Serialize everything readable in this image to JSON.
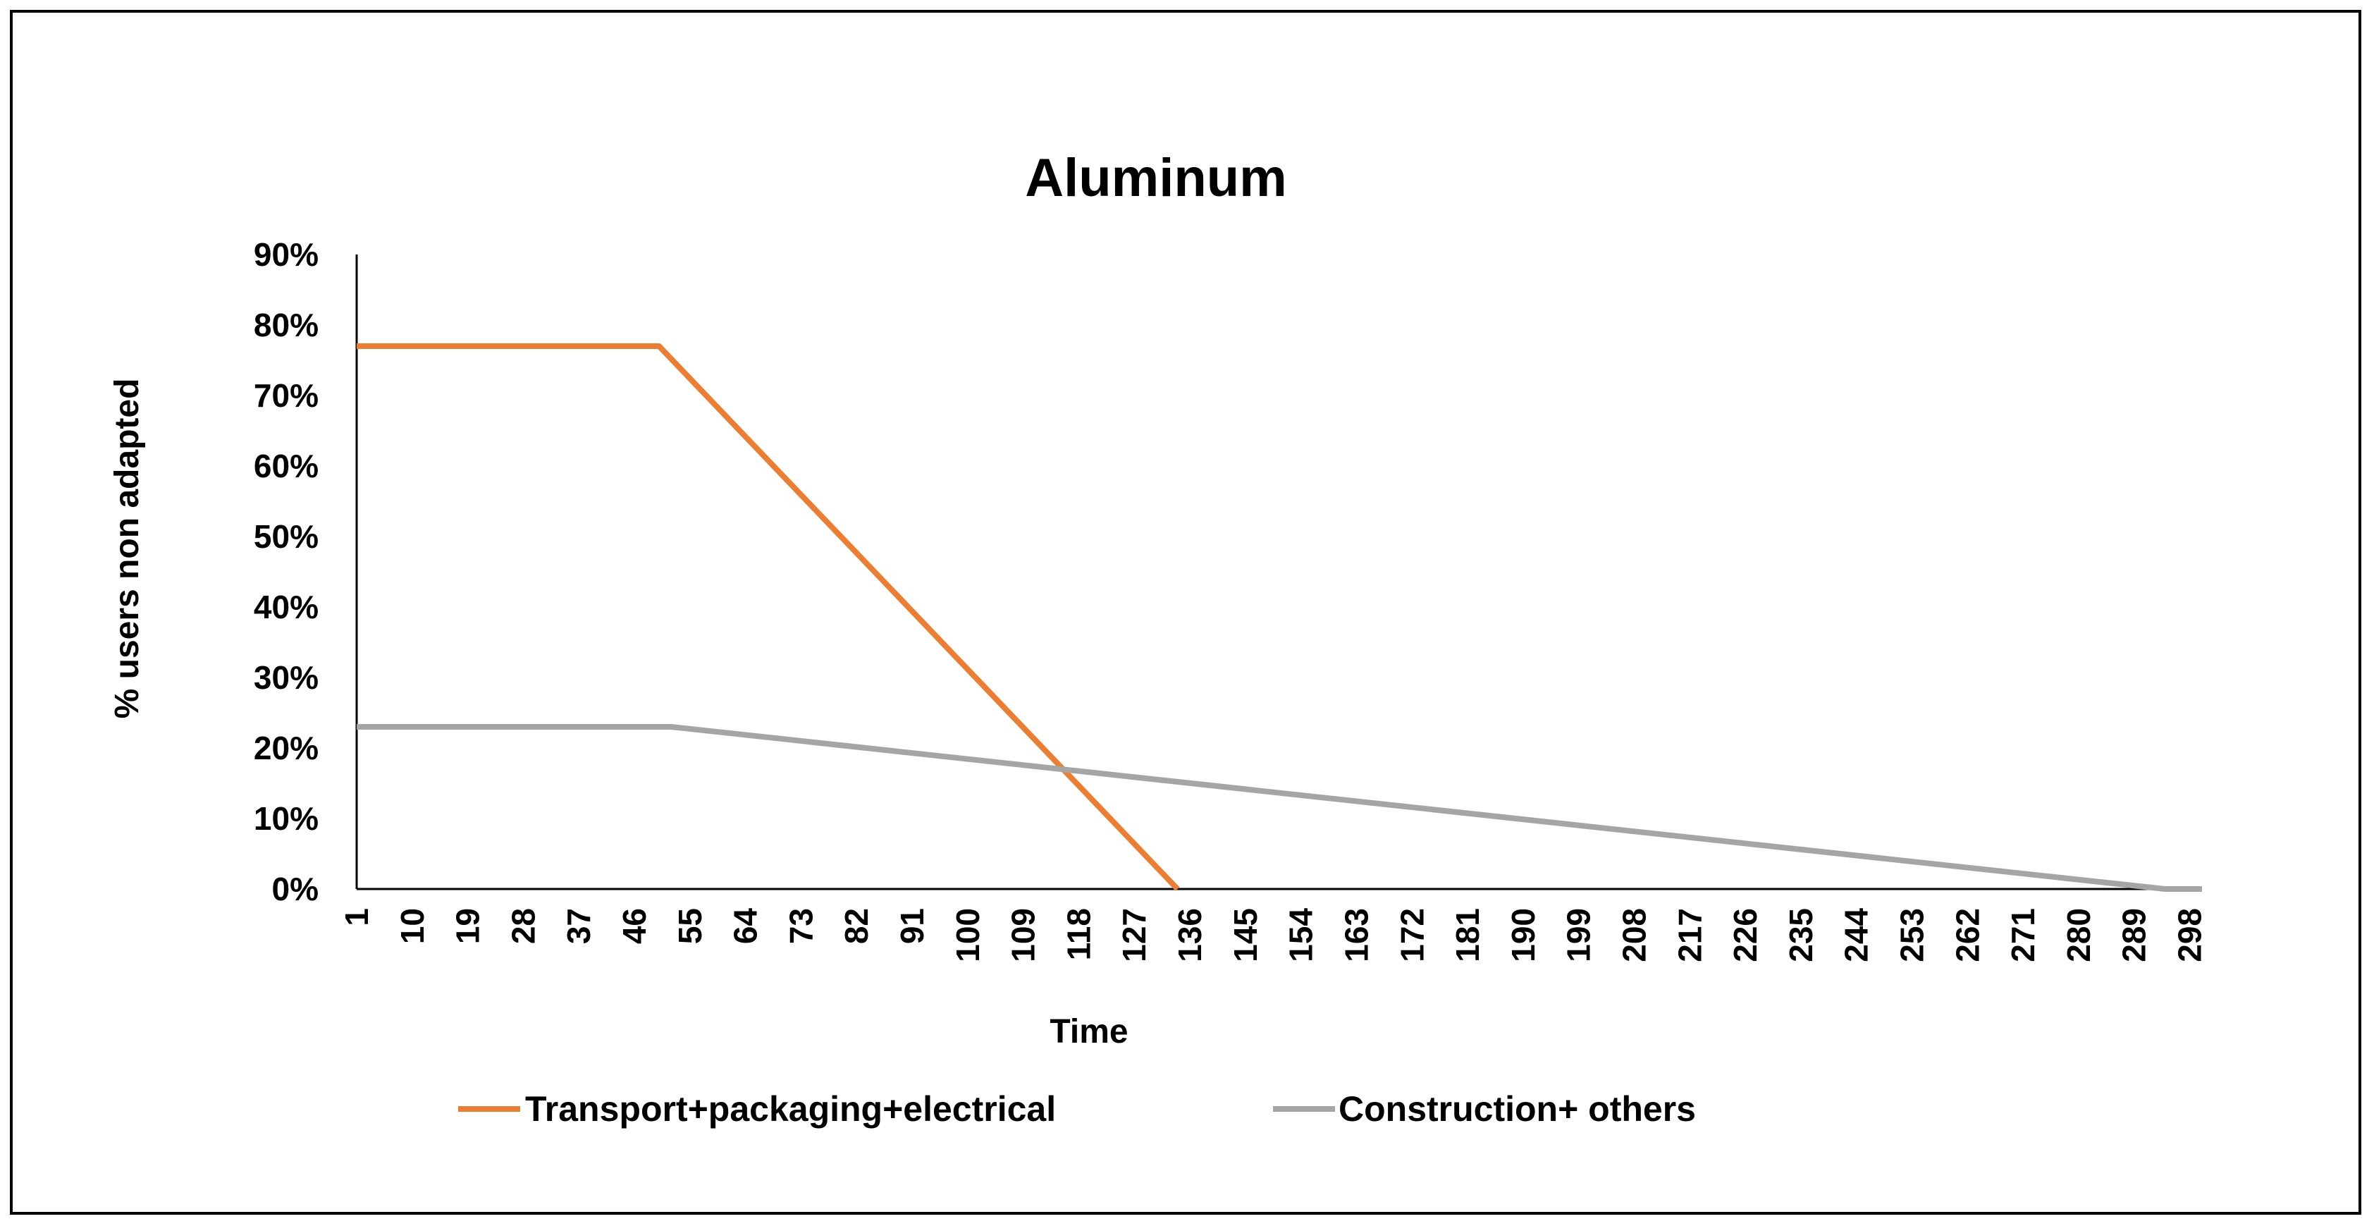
{
  "chart_data": {
    "type": "line",
    "title": "Aluminum",
    "xlabel": "Time",
    "ylabel": "% users non adapted",
    "x_range": [
      1,
      300
    ],
    "x_tick_labels": [
      "1",
      "10",
      "19",
      "28",
      "37",
      "46",
      "55",
      "64",
      "73",
      "82",
      "91",
      "100",
      "109",
      "118",
      "127",
      "136",
      "145",
      "154",
      "163",
      "172",
      "181",
      "190",
      "199",
      "208",
      "217",
      "226",
      "235",
      "244",
      "253",
      "262",
      "271",
      "280",
      "289",
      "298"
    ],
    "ylim": [
      0,
      0.9
    ],
    "y_tick_labels": [
      "0%",
      "10%",
      "20%",
      "30%",
      "40%",
      "50%",
      "60%",
      "70%",
      "80%",
      "90%"
    ],
    "y_ticks": [
      0,
      0.1,
      0.2,
      0.3,
      0.4,
      0.5,
      0.6,
      0.7,
      0.8,
      0.9
    ],
    "grid": false,
    "legend_position": "bottom",
    "series": [
      {
        "name": "Transport+packaging+electrical",
        "color": "#ed7d31",
        "points": [
          [
            1,
            0.77
          ],
          [
            50,
            0.77
          ],
          [
            134,
            0.0
          ]
        ]
      },
      {
        "name": "Construction+ others",
        "color": "#a5a5a5",
        "points": [
          [
            1,
            0.23
          ],
          [
            52,
            0.23
          ],
          [
            294,
            0.0
          ],
          [
            300,
            0.0
          ]
        ]
      }
    ]
  }
}
